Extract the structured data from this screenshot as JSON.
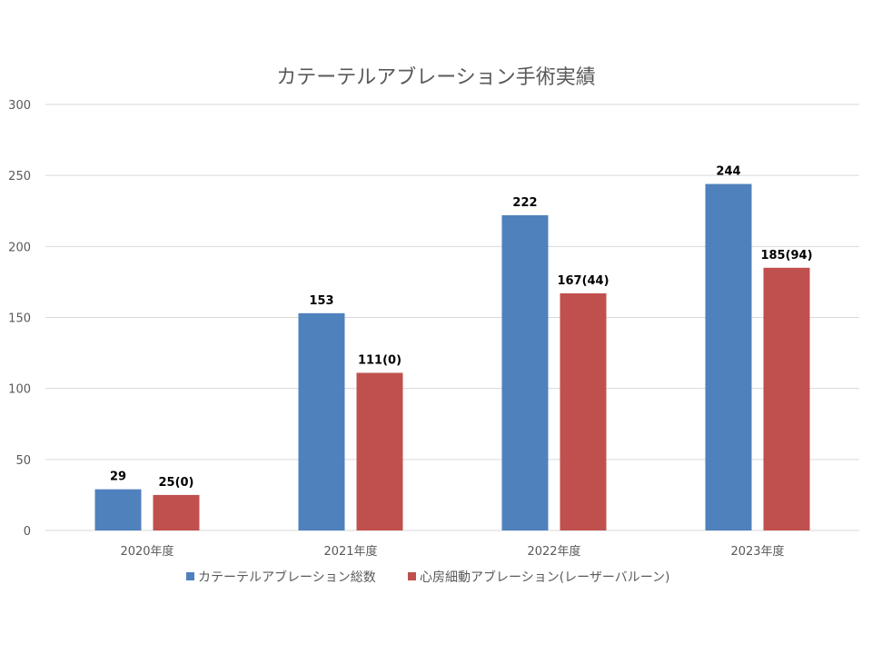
{
  "chart_data": {
    "type": "bar",
    "title": "カテーテルアブレーション手術実績",
    "categories": [
      "2020年度",
      "2021年度",
      "2022年度",
      "2023年度"
    ],
    "series": [
      {
        "name": "カテーテルアブレーション総数",
        "values": [
          29,
          153,
          222,
          244
        ],
        "labels": [
          "29",
          "153",
          "222",
          "244"
        ],
        "color": "#4f81bd"
      },
      {
        "name": "心房細動アブレーション(レーザーバルーン)",
        "values": [
          25,
          111,
          167,
          185
        ],
        "labels": [
          "25(0)",
          "111(0)",
          "167(44)",
          "185(94)"
        ],
        "color": "#c0504d"
      }
    ],
    "ylim": [
      0,
      300
    ],
    "yticks": [
      "0",
      "50",
      "100",
      "150",
      "200",
      "250",
      "300"
    ],
    "grid": true,
    "legend": "bottom"
  }
}
